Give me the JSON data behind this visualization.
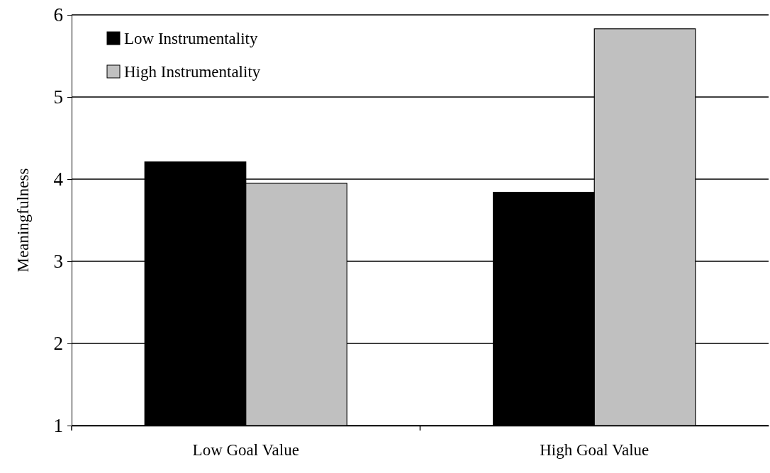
{
  "chart_data": {
    "type": "bar",
    "ylabel": "Meaningfulness",
    "categories": [
      "Low Goal Value",
      "High Goal Value"
    ],
    "series": [
      {
        "name": "Low Instrumentality",
        "color": "#000000",
        "values": [
          4.21,
          3.84
        ]
      },
      {
        "name": "High Instrumentality",
        "color": "#c0c0c0",
        "values": [
          3.95,
          5.83
        ]
      }
    ],
    "ylim": [
      1,
      6
    ],
    "yticks": [
      1,
      2,
      3,
      4,
      5,
      6
    ],
    "grid": "y",
    "legend": "top left"
  }
}
